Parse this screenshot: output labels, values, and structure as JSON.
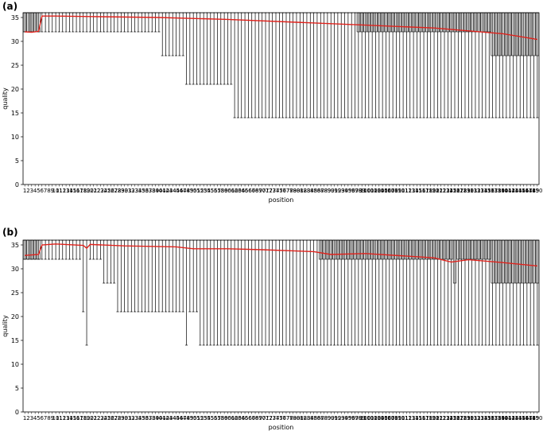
{
  "chart_data": [
    {
      "type": "box",
      "panel_label": "(a)",
      "xlabel": "position",
      "ylabel": "quality",
      "ylim": [
        0,
        36
      ],
      "yticks": [
        0,
        5,
        10,
        15,
        20,
        25,
        30,
        35
      ],
      "positions": [
        1,
        150
      ],
      "lower_whisker_segments": [
        {
          "from": 1,
          "to": 5,
          "low": 32,
          "box_low": 32,
          "high": 36
        },
        {
          "from": 6,
          "to": 40,
          "low": 32,
          "box_low": 32,
          "high": 36
        },
        {
          "from": 41,
          "to": 47,
          "low": 27,
          "box_low": 32,
          "high": 36
        },
        {
          "from": 48,
          "to": 61,
          "low": 21,
          "box_low": 32,
          "high": 36
        },
        {
          "from": 62,
          "to": 150,
          "low": 14,
          "box_low": 32,
          "high": 36
        }
      ],
      "mean_line": {
        "color": "#e0221c",
        "x": [
          1,
          3,
          5,
          6,
          10,
          20,
          40,
          60,
          80,
          100,
          120,
          130,
          140,
          150
        ],
        "y": [
          32,
          31.9,
          32.1,
          35.3,
          35.3,
          35.2,
          35.0,
          34.6,
          34.0,
          33.4,
          32.8,
          32.2,
          31.6,
          30.4
        ]
      },
      "box_regions": [
        {
          "from": 1,
          "to": 5,
          "q1": 32,
          "q3": 36
        },
        {
          "from": 98,
          "to": 136,
          "q1": 32,
          "q3": 36
        },
        {
          "from": 137,
          "to": 150,
          "q1": 27,
          "q3": 36
        }
      ]
    },
    {
      "type": "box",
      "panel_label": "(b)",
      "xlabel": "position",
      "ylabel": "quality",
      "ylim": [
        0,
        36
      ],
      "yticks": [
        0,
        5,
        10,
        15,
        20,
        25,
        30,
        35
      ],
      "positions": [
        1,
        150
      ],
      "lower_whisker_segments": [
        {
          "from": 1,
          "to": 5,
          "low": 32,
          "box_low": 32,
          "high": 36
        },
        {
          "from": 6,
          "to": 17,
          "low": 32,
          "box_low": 32,
          "high": 36
        },
        {
          "from": 18,
          "to": 18,
          "low": 21,
          "box_low": 32,
          "high": 36
        },
        {
          "from": 19,
          "to": 19,
          "low": 14,
          "box_low": 32,
          "high": 36
        },
        {
          "from": 20,
          "to": 23,
          "low": 32,
          "box_low": 32,
          "high": 36
        },
        {
          "from": 24,
          "to": 27,
          "low": 27,
          "box_low": 32,
          "high": 36
        },
        {
          "from": 28,
          "to": 35,
          "low": 21,
          "box_low": 32,
          "high": 36
        },
        {
          "from": 36,
          "to": 47,
          "low": 21,
          "box_low": 32,
          "high": 36
        },
        {
          "from": 48,
          "to": 48,
          "low": 14,
          "box_low": 32,
          "high": 36
        },
        {
          "from": 49,
          "to": 51,
          "low": 21,
          "box_low": 32,
          "high": 36
        },
        {
          "from": 52,
          "to": 52,
          "low": 14,
          "box_low": 32,
          "high": 36
        },
        {
          "from": 53,
          "to": 150,
          "low": 14,
          "box_low": 32,
          "high": 36
        }
      ],
      "mean_line": {
        "color": "#e0221c",
        "x": [
          1,
          3,
          5,
          6,
          10,
          18,
          19,
          20,
          30,
          45,
          50,
          60,
          70,
          85,
          90,
          100,
          120,
          125,
          130,
          140,
          150
        ],
        "y": [
          32.8,
          32.9,
          33.0,
          35.0,
          35.2,
          34.9,
          34.3,
          35.1,
          34.8,
          34.6,
          34.2,
          34.2,
          34.0,
          33.6,
          33.0,
          33.2,
          32.3,
          31.4,
          31.9,
          31.3,
          30.6
        ]
      },
      "box_regions": [
        {
          "from": 1,
          "to": 5,
          "q1": 32,
          "q3": 36
        },
        {
          "from": 87,
          "to": 125,
          "q1": 32,
          "q3": 36
        },
        {
          "from": 126,
          "to": 126,
          "q1": 27,
          "q3": 36
        },
        {
          "from": 127,
          "to": 136,
          "q1": 32,
          "q3": 36
        },
        {
          "from": 137,
          "to": 150,
          "q1": 27,
          "q3": 36
        }
      ]
    }
  ],
  "figure": {
    "panels": [
      {
        "label": "(a)"
      },
      {
        "label": "(b)"
      }
    ]
  }
}
